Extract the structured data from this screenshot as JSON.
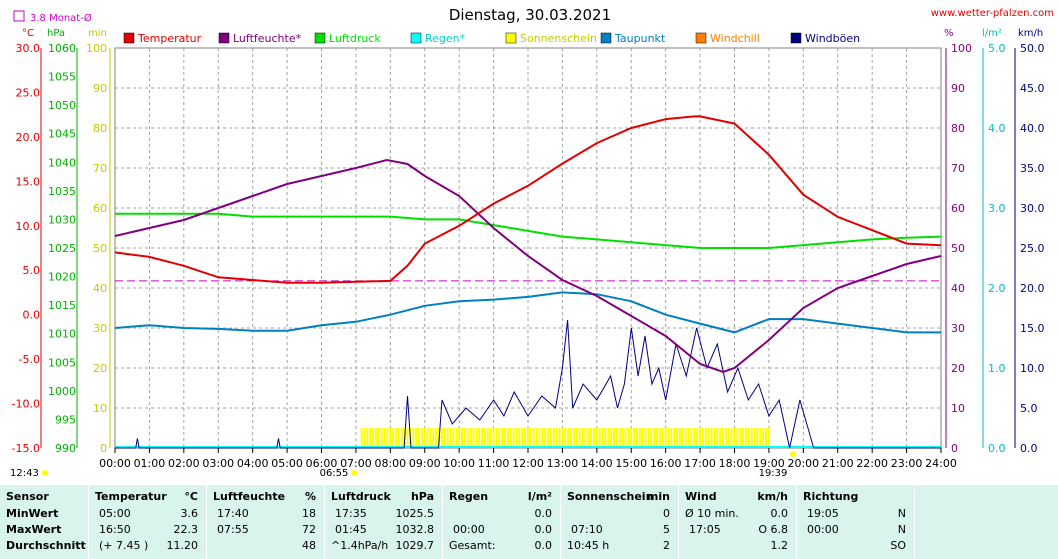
{
  "header": {
    "title": "Dienstag, 30.03.2021",
    "website": "www.wetter-pfalzen.com",
    "monthly_avg_label": "3.8 Monat-Ø",
    "unit_celsius": "°C",
    "unit_hpa": "hPa",
    "unit_min": "min",
    "unit_percent": "%",
    "unit_rain": "l/m²",
    "unit_wind": "km/h",
    "sunrise_time": "06:55",
    "sunset_time": "19:39",
    "start_time": "12:43"
  },
  "chart_data": {
    "type": "line",
    "title": "Dienstag, 30.03.2021",
    "x": [
      "00:00",
      "01:00",
      "02:00",
      "03:00",
      "04:00",
      "05:00",
      "06:00",
      "07:00",
      "08:00",
      "09:00",
      "10:00",
      "11:00",
      "12:00",
      "13:00",
      "14:00",
      "15:00",
      "16:00",
      "17:00",
      "18:00",
      "19:00",
      "20:00",
      "21:00",
      "22:00",
      "23:00",
      "24:00"
    ],
    "monthly_avg_temperature": 3.8,
    "axes": {
      "temperature": {
        "unit": "°C",
        "range": [
          -15,
          30
        ],
        "ticks": [
          "30.0",
          "25.0",
          "20.0",
          "15.0",
          "10.0",
          "5.0",
          "0.0",
          "-5.0",
          "-10.0",
          "-15.0"
        ]
      },
      "pressure": {
        "unit": "hPa",
        "range": [
          990,
          1060
        ],
        "ticks": [
          "1060",
          "1055",
          "1050",
          "1045",
          "1040",
          "1035",
          "1030",
          "1025",
          "1020",
          "1015",
          "1010",
          "1005",
          "1000",
          "995",
          "990"
        ]
      },
      "sunshine": {
        "unit": "min",
        "range": [
          0,
          100
        ],
        "ticks": [
          "100",
          "90",
          "80",
          "70",
          "60",
          "50",
          "40",
          "30",
          "20",
          "10",
          "0"
        ]
      },
      "humidity": {
        "unit": "%",
        "range": [
          0,
          100
        ],
        "ticks": [
          "100",
          "90",
          "80",
          "70",
          "60",
          "50",
          "40",
          "30",
          "20",
          "10",
          "0"
        ]
      },
      "rain": {
        "unit": "l/m²",
        "range": [
          0,
          5
        ],
        "ticks": [
          "5.0",
          "4.0",
          "3.0",
          "2.0",
          "1.0",
          "0.0"
        ]
      },
      "wind": {
        "unit": "km/h",
        "range": [
          0,
          50
        ],
        "ticks": [
          "50.0",
          "45.0",
          "40.0",
          "35.0",
          "30.0",
          "25.0",
          "20.0",
          "15.0",
          "10.0",
          "5.0",
          "0.0"
        ]
      }
    },
    "legend": [
      {
        "name": "Temperatur",
        "color": "#e00000"
      },
      {
        "name": "Luftfeuchte*",
        "color": "#800080"
      },
      {
        "name": "Luftdruck",
        "color": "#00e000"
      },
      {
        "name": "Regen*",
        "color": "#00ffff"
      },
      {
        "name": "Sonnenschein",
        "color": "#ffff00"
      },
      {
        "name": "Taupunkt",
        "color": "#0080c0"
      },
      {
        "name": "Windchill",
        "color": "#ff8000"
      },
      {
        "name": "Windböen",
        "color": "#000080"
      }
    ],
    "series": [
      {
        "name": "Temperatur",
        "axis": "temperature",
        "color": "#e00000",
        "points": [
          [
            0,
            7.0
          ],
          [
            1,
            6.5
          ],
          [
            2,
            5.5
          ],
          [
            3,
            4.2
          ],
          [
            4,
            3.9
          ],
          [
            5,
            3.6
          ],
          [
            6,
            3.6
          ],
          [
            7,
            3.7
          ],
          [
            8,
            3.8
          ],
          [
            8.5,
            5.5
          ],
          [
            9,
            8.0
          ],
          [
            10,
            10.0
          ],
          [
            11,
            12.5
          ],
          [
            12,
            14.5
          ],
          [
            13,
            17.0
          ],
          [
            14,
            19.3
          ],
          [
            15,
            21.0
          ],
          [
            16,
            22.0
          ],
          [
            16.83,
            22.3
          ],
          [
            17,
            22.3
          ],
          [
            18,
            21.5
          ],
          [
            19,
            18.0
          ],
          [
            20,
            13.5
          ],
          [
            21,
            11.0
          ],
          [
            22,
            9.5
          ],
          [
            23,
            8.0
          ],
          [
            24,
            7.8
          ]
        ]
      },
      {
        "name": "Luftfeuchte*",
        "axis": "humidity",
        "color": "#800080",
        "points": [
          [
            0,
            53
          ],
          [
            1,
            55
          ],
          [
            2,
            57
          ],
          [
            3,
            60
          ],
          [
            4,
            63
          ],
          [
            5,
            66
          ],
          [
            6,
            68
          ],
          [
            7,
            70
          ],
          [
            7.9,
            72
          ],
          [
            8.5,
            71
          ],
          [
            9,
            68
          ],
          [
            10,
            63
          ],
          [
            11,
            55
          ],
          [
            12,
            48
          ],
          [
            13,
            42
          ],
          [
            14,
            38
          ],
          [
            15,
            33
          ],
          [
            16,
            28
          ],
          [
            17,
            21
          ],
          [
            17.67,
            19
          ],
          [
            18,
            20
          ],
          [
            19,
            27
          ],
          [
            20,
            35
          ],
          [
            21,
            40
          ],
          [
            22,
            43
          ],
          [
            23,
            46
          ],
          [
            24,
            48
          ]
        ]
      },
      {
        "name": "Luftdruck",
        "axis": "pressure",
        "color": "#00e000",
        "points": [
          [
            0,
            1031
          ],
          [
            1,
            1031
          ],
          [
            2,
            1031
          ],
          [
            3,
            1031
          ],
          [
            4,
            1030.5
          ],
          [
            5,
            1030.5
          ],
          [
            6,
            1030.5
          ],
          [
            7,
            1030.5
          ],
          [
            8,
            1030.5
          ],
          [
            9,
            1030
          ],
          [
            10,
            1030
          ],
          [
            11,
            1029
          ],
          [
            12,
            1028
          ],
          [
            13,
            1027
          ],
          [
            14,
            1026.5
          ],
          [
            15,
            1026
          ],
          [
            16,
            1025.5
          ],
          [
            17,
            1025
          ],
          [
            18,
            1025
          ],
          [
            19,
            1025
          ],
          [
            20,
            1025.5
          ],
          [
            21,
            1026
          ],
          [
            22,
            1026.5
          ],
          [
            23,
            1026.8
          ],
          [
            24,
            1027
          ]
        ]
      },
      {
        "name": "Taupunkt",
        "axis": "temperature",
        "color": "#0080c0",
        "points": [
          [
            0,
            -1.5
          ],
          [
            1,
            -1.2
          ],
          [
            2,
            -1.5
          ],
          [
            3,
            -1.6
          ],
          [
            4,
            -1.8
          ],
          [
            5,
            -1.8
          ],
          [
            6,
            -1.2
          ],
          [
            7,
            -0.8
          ],
          [
            8,
            0.0
          ],
          [
            9,
            1.0
          ],
          [
            10,
            1.5
          ],
          [
            11,
            1.7
          ],
          [
            12,
            2.0
          ],
          [
            13,
            2.5
          ],
          [
            14,
            2.3
          ],
          [
            15,
            1.5
          ],
          [
            16,
            0.0
          ],
          [
            17,
            -1.0
          ],
          [
            18,
            -2.0
          ],
          [
            19,
            -0.5
          ],
          [
            20,
            -0.5
          ],
          [
            21,
            -1.0
          ],
          [
            22,
            -1.5
          ],
          [
            23,
            -2.0
          ],
          [
            24,
            -2.0
          ]
        ]
      },
      {
        "name": "Windböen",
        "axis": "wind",
        "color": "#000080",
        "points": [
          [
            0,
            0
          ],
          [
            0.6,
            0
          ],
          [
            0.65,
            1.2
          ],
          [
            0.7,
            0
          ],
          [
            4.7,
            0
          ],
          [
            4.75,
            1.2
          ],
          [
            4.8,
            0
          ],
          [
            8.4,
            0
          ],
          [
            8.5,
            6.5
          ],
          [
            8.6,
            0
          ],
          [
            9.4,
            0
          ],
          [
            9.5,
            6
          ],
          [
            9.8,
            3
          ],
          [
            10.2,
            5
          ],
          [
            10.6,
            3.5
          ],
          [
            11.0,
            6
          ],
          [
            11.3,
            4
          ],
          [
            11.6,
            7
          ],
          [
            12.0,
            4
          ],
          [
            12.4,
            6.5
          ],
          [
            12.8,
            5
          ],
          [
            13.0,
            10
          ],
          [
            13.15,
            16
          ],
          [
            13.3,
            5
          ],
          [
            13.6,
            8
          ],
          [
            14.0,
            6
          ],
          [
            14.4,
            9
          ],
          [
            14.6,
            5
          ],
          [
            14.8,
            8
          ],
          [
            15.0,
            15
          ],
          [
            15.2,
            9
          ],
          [
            15.4,
            14
          ],
          [
            15.6,
            8
          ],
          [
            15.8,
            10
          ],
          [
            16.0,
            6
          ],
          [
            16.3,
            13
          ],
          [
            16.6,
            9
          ],
          [
            16.9,
            15
          ],
          [
            17.2,
            10
          ],
          [
            17.5,
            13
          ],
          [
            17.8,
            7
          ],
          [
            18.1,
            10
          ],
          [
            18.4,
            6
          ],
          [
            18.7,
            8
          ],
          [
            19.0,
            4
          ],
          [
            19.3,
            6
          ],
          [
            19.6,
            0
          ],
          [
            19.9,
            6
          ],
          [
            20.1,
            3
          ],
          [
            20.3,
            0
          ],
          [
            24,
            0
          ]
        ]
      }
    ],
    "sunshine_period": {
      "start": "07:10",
      "end": "19:05",
      "minutes": 5
    },
    "rain_total": 0.0
  },
  "summary": {
    "sensor_label": "Sensor",
    "min_label": "MinWert",
    "max_label": "MaxWert",
    "avg_label": "Durchschnitt",
    "temperature": {
      "label": "Temperatur",
      "unit": "°C",
      "min_time": "05:00",
      "min_value": "3.6",
      "max_time": "16:50",
      "max_value": "22.3",
      "avg_note": "(+ 7.45 )",
      "avg_value": "11.20"
    },
    "humidity": {
      "label": "Luftfeuchte",
      "unit": "%",
      "min_time": "17:40",
      "min_value": "18",
      "max_time": "07:55",
      "max_value": "72",
      "avg_value": "48"
    },
    "pressure": {
      "label": "Luftdruck",
      "unit": "hPa",
      "min_time": "17:35",
      "min_value": "1025.5",
      "max_time": "01:45",
      "max_value": "1032.8",
      "avg_note": "^1.4hPa/h",
      "avg_value": "1029.7"
    },
    "rain": {
      "label": "Regen",
      "unit": "l/m²",
      "min_value": "0.0",
      "max_time": "00:00",
      "max_value": "0.0",
      "avg_note": "Gesamt:",
      "avg_value": "0.0"
    },
    "sunshine": {
      "label": "Sonnenschein",
      "unit": "min",
      "min_value": "0",
      "max_time": "07:10",
      "max_value": "5",
      "avg_note": "10:45 h",
      "avg_value": "2"
    },
    "wind": {
      "label": "Wind",
      "unit": "km/h",
      "min_note": "Ø 10 min.",
      "min_value": "0.0",
      "max_time": "17:05",
      "max_value": "O 6.8",
      "avg_value": "1.2"
    },
    "direction": {
      "label": "Richtung",
      "min_time": "19:05",
      "min_value": "N",
      "max_time": "00:00",
      "max_value": "N",
      "avg_value": "SO"
    }
  }
}
